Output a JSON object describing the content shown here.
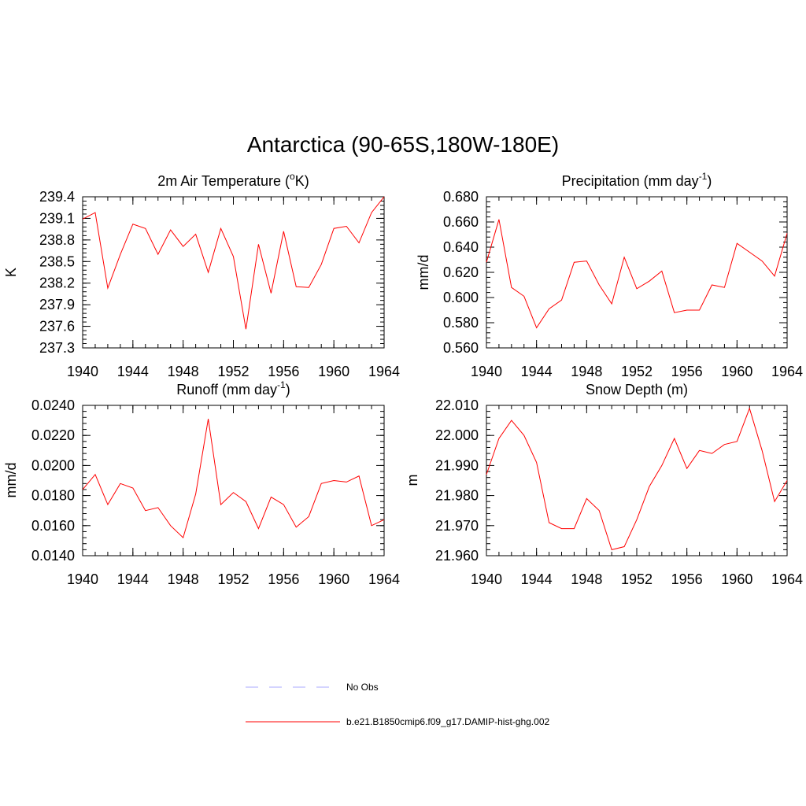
{
  "title": "Antarctica (90-65S,180W-180E)",
  "colors": {
    "model_line": "#ff0000",
    "obs_line": "#aaaaff",
    "axis": "#000000"
  },
  "legend": [
    {
      "label": "No Obs",
      "style": "dashed",
      "color": "#aaaaff"
    },
    {
      "label": "b.e21.B1850cmip6.f09_g17.DAMIP-hist-ghg.002",
      "style": "solid",
      "color": "#ff0000"
    }
  ],
  "chart_data": [
    {
      "type": "line",
      "title": "2m Air Temperature (",
      "title_sup": "o",
      "title_after": "K)",
      "ylabel": "K",
      "xlim": [
        1940,
        1964
      ],
      "ylim": [
        237.3,
        239.4
      ],
      "xticks": [
        1940,
        1944,
        1948,
        1952,
        1956,
        1960,
        1964
      ],
      "xtick_labels": [
        "1940",
        "1944",
        "1948",
        "1952",
        "1956",
        "1960",
        "1964"
      ],
      "yticks": [
        237.3,
        237.6,
        237.9,
        238.2,
        238.5,
        238.8,
        239.1,
        239.4
      ],
      "ytick_labels": [
        "237.3",
        "237.6",
        "237.9",
        "238.2",
        "238.5",
        "238.8",
        "239.1",
        "239.4"
      ],
      "x": [
        1940,
        1941,
        1942,
        1943,
        1944,
        1945,
        1946,
        1947,
        1948,
        1949,
        1950,
        1951,
        1952,
        1953,
        1954,
        1955,
        1956,
        1957,
        1958,
        1959,
        1960,
        1961,
        1962,
        1963,
        1964
      ],
      "series": [
        {
          "values": [
            239.09,
            239.18,
            238.13,
            238.6,
            239.02,
            238.96,
            238.6,
            238.94,
            238.71,
            238.88,
            238.35,
            238.96,
            238.57,
            237.56,
            238.74,
            238.06,
            238.92,
            238.15,
            238.14,
            238.46,
            238.96,
            238.99,
            238.76,
            239.18,
            239.4
          ]
        }
      ]
    },
    {
      "type": "line",
      "title": "Precipitation (mm day",
      "title_sup": "-1",
      "title_after": ")",
      "ylabel": "mm/d",
      "xlim": [
        1940,
        1964
      ],
      "ylim": [
        0.56,
        0.68
      ],
      "xticks": [
        1940,
        1944,
        1948,
        1952,
        1956,
        1960,
        1964
      ],
      "xtick_labels": [
        "1940",
        "1944",
        "1948",
        "1952",
        "1956",
        "1960",
        "1964"
      ],
      "yticks": [
        0.56,
        0.58,
        0.6,
        0.62,
        0.64,
        0.66,
        0.68
      ],
      "ytick_labels": [
        "0.560",
        "0.580",
        "0.600",
        "0.620",
        "0.640",
        "0.660",
        "0.680"
      ],
      "x": [
        1940,
        1941,
        1942,
        1943,
        1944,
        1945,
        1946,
        1947,
        1948,
        1949,
        1950,
        1951,
        1952,
        1953,
        1954,
        1955,
        1956,
        1957,
        1958,
        1959,
        1960,
        1961,
        1962,
        1963,
        1964
      ],
      "series": [
        {
          "values": [
            0.628,
            0.662,
            0.608,
            0.601,
            0.576,
            0.591,
            0.598,
            0.628,
            0.629,
            0.61,
            0.595,
            0.632,
            0.607,
            0.613,
            0.621,
            0.588,
            0.59,
            0.59,
            0.61,
            0.608,
            0.643,
            0.636,
            0.629,
            0.617,
            0.651
          ]
        }
      ]
    },
    {
      "type": "line",
      "title": "Runoff (mm day",
      "title_sup": "-1",
      "title_after": ")",
      "ylabel": "mm/d",
      "xlim": [
        1940,
        1964
      ],
      "ylim": [
        0.014,
        0.024
      ],
      "xticks": [
        1940,
        1944,
        1948,
        1952,
        1956,
        1960,
        1964
      ],
      "xtick_labels": [
        "1940",
        "1944",
        "1948",
        "1952",
        "1956",
        "1960",
        "1964"
      ],
      "yticks": [
        0.014,
        0.016,
        0.018,
        0.02,
        0.022,
        0.024
      ],
      "ytick_labels": [
        "0.0140",
        "0.0160",
        "0.0180",
        "0.0200",
        "0.0220",
        "0.0240"
      ],
      "x": [
        1940,
        1941,
        1942,
        1943,
        1944,
        1945,
        1946,
        1947,
        1948,
        1949,
        1950,
        1951,
        1952,
        1953,
        1954,
        1955,
        1956,
        1957,
        1958,
        1959,
        1960,
        1961,
        1962,
        1963,
        1964
      ],
      "series": [
        {
          "values": [
            0.0184,
            0.0194,
            0.0174,
            0.0188,
            0.0185,
            0.017,
            0.0172,
            0.016,
            0.0152,
            0.0181,
            0.0231,
            0.0174,
            0.0182,
            0.0176,
            0.0158,
            0.0179,
            0.0174,
            0.0159,
            0.0166,
            0.0188,
            0.019,
            0.0189,
            0.0193,
            0.016,
            0.0164
          ]
        }
      ]
    },
    {
      "type": "line",
      "title": "Snow Depth (m)",
      "title_sup": "",
      "title_after": "",
      "ylabel": "m",
      "xlim": [
        1940,
        1964
      ],
      "ylim": [
        21.96,
        22.01
      ],
      "xticks": [
        1940,
        1944,
        1948,
        1952,
        1956,
        1960,
        1964
      ],
      "xtick_labels": [
        "1940",
        "1944",
        "1948",
        "1952",
        "1956",
        "1960",
        "1964"
      ],
      "yticks": [
        21.96,
        21.97,
        21.98,
        21.99,
        22.0,
        22.01
      ],
      "ytick_labels": [
        "21.960",
        "21.970",
        "21.980",
        "21.990",
        "22.000",
        "22.010"
      ],
      "x": [
        1940,
        1941,
        1942,
        1943,
        1944,
        1945,
        1946,
        1947,
        1948,
        1949,
        1950,
        1951,
        1952,
        1953,
        1954,
        1955,
        1956,
        1957,
        1958,
        1959,
        1960,
        1961,
        1962,
        1963,
        1964
      ],
      "series": [
        {
          "values": [
            21.987,
            21.999,
            22.005,
            22.0,
            21.991,
            21.971,
            21.969,
            21.969,
            21.979,
            21.975,
            21.962,
            21.963,
            21.972,
            21.983,
            21.99,
            21.999,
            21.989,
            21.995,
            21.994,
            21.997,
            21.998,
            22.009,
            21.995,
            21.978,
            21.985
          ]
        }
      ]
    }
  ]
}
